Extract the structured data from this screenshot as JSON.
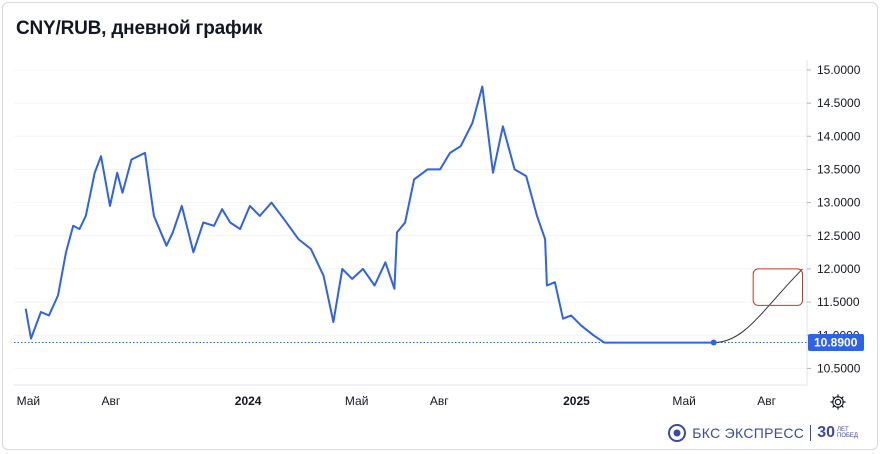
{
  "title": "CNY/RUB, дневной график",
  "brand": {
    "name": "БКС ЭКСПРЕСС",
    "anniversary_number": "30",
    "anniversary_text_1": "ЛЕТ",
    "anniversary_text_2": "ПОБЕД"
  },
  "icons": {
    "settings": "gear-icon",
    "brand_logo": "bks-logo-icon"
  },
  "colors": {
    "line": "#2e62e8",
    "forecast": "#333333",
    "last_label_bg": "#2e62e8",
    "box": "#c0392b",
    "dotted": "#2e62e8"
  },
  "chart_data": {
    "type": "line",
    "title": "CNY/RUB, дневной график",
    "xlabel": "",
    "ylabel": "",
    "ylim": [
      10.25,
      15.15
    ],
    "yticks": [
      "10.5000",
      "11.0000",
      "11.5000",
      "12.0000",
      "12.5000",
      "13.0000",
      "13.5000",
      "14.0000",
      "14.5000",
      "15.0000"
    ],
    "xticks": [
      {
        "label": "Май",
        "bold": false,
        "date": "2023-05-01"
      },
      {
        "label": "Авг",
        "bold": false,
        "date": "2023-08-01"
      },
      {
        "label": "2024",
        "bold": true,
        "date": "2024-01-01"
      },
      {
        "label": "Май",
        "bold": false,
        "date": "2024-05-01"
      },
      {
        "label": "Авг",
        "bold": false,
        "date": "2024-08-01"
      },
      {
        "label": "2025",
        "bold": true,
        "date": "2025-01-01"
      },
      {
        "label": "Май",
        "bold": false,
        "date": "2025-05-01"
      },
      {
        "label": "Авг",
        "bold": false,
        "date": "2025-08-01"
      }
    ],
    "last_value_label": "10.8900",
    "last_value": 10.89,
    "series": [
      {
        "x": [
          "2023-04-28",
          "2023-05-04",
          "2023-05-15",
          "2023-05-24",
          "2023-06-03",
          "2023-06-12",
          "2023-06-20",
          "2023-06-27",
          "2023-07-04",
          "2023-07-14",
          "2023-07-21",
          "2023-07-31",
          "2023-08-08",
          "2023-08-14",
          "2023-08-24",
          "2023-09-08",
          "2023-09-18",
          "2023-10-02",
          "2023-10-09",
          "2023-10-19",
          "2023-11-01",
          "2023-11-12",
          "2023-11-24",
          "2023-12-03",
          "2023-12-12",
          "2023-12-23",
          "2024-01-03",
          "2024-01-14",
          "2024-01-27",
          "2024-02-10",
          "2024-02-26",
          "2024-03-11",
          "2024-03-25",
          "2024-04-05",
          "2024-04-15",
          "2024-04-26",
          "2024-05-08",
          "2024-05-21",
          "2024-06-02",
          "2024-06-12",
          "2024-06-15",
          "2024-06-24",
          "2024-07-04",
          "2024-07-19",
          "2024-08-02",
          "2024-08-13",
          "2024-08-25",
          "2024-09-07",
          "2024-09-18",
          "2024-09-30",
          "2024-10-11",
          "2024-10-24",
          "2024-11-06",
          "2024-11-18",
          "2024-11-27",
          "2024-11-29",
          "2024-12-08",
          "2024-12-17",
          "2024-12-26",
          "2025-01-06",
          "2025-01-20",
          "2025-02-01",
          "2025-02-13",
          "2025-02-22",
          "2025-03-06",
          "2025-03-18",
          "2025-04-01",
          "2025-04-12",
          "2025-04-24",
          "2025-05-07",
          "2025-05-20",
          "2025-05-30",
          "2025-06-03"
        ],
        "values": [
          11.4,
          10.95,
          11.35,
          11.3,
          11.6,
          12.25,
          12.65,
          12.6,
          12.8,
          13.45,
          13.7,
          12.95,
          13.45,
          13.15,
          13.65,
          13.75,
          12.8,
          12.35,
          12.55,
          12.95,
          12.25,
          12.7,
          12.65,
          12.9,
          12.7,
          12.6,
          12.95,
          12.8,
          13.0,
          12.75,
          12.45,
          12.3,
          11.9,
          11.2,
          12.0,
          11.85,
          12.0,
          11.75,
          12.1,
          11.7,
          12.55,
          12.7,
          13.35,
          13.5,
          13.5,
          13.75,
          13.85,
          14.2,
          14.75,
          13.45,
          14.15,
          13.5,
          13.4,
          12.8,
          12.45,
          11.75,
          11.8,
          11.25,
          11.3,
          11.15,
          11.0,
          10.89,
          10.89,
          10.89,
          10.89,
          10.89,
          10.89,
          10.89,
          10.89,
          10.89,
          10.89,
          10.89,
          10.89
        ]
      }
    ],
    "forecast": {
      "from": [
        "2025-06-03",
        10.89
      ],
      "to": [
        "2025-09-10",
        12.0
      ]
    },
    "annotation_box": {
      "x_range": [
        "2025-07-17",
        "2025-09-10"
      ],
      "y_range": [
        11.45,
        12.0
      ]
    }
  }
}
